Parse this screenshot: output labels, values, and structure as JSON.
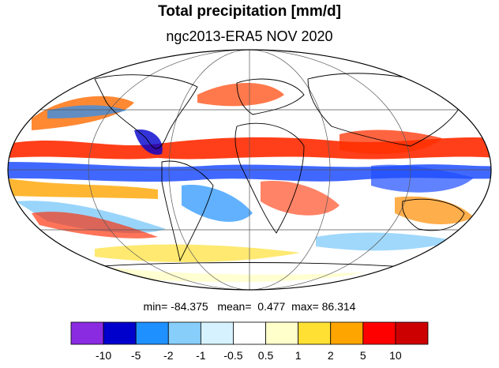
{
  "title": "Total precipitation [mm/d]",
  "subtitle": "ngc2013-ERA5 NOV 2020",
  "stats": {
    "min_label": "min=",
    "min": "-84.375",
    "mean_label": "mean=",
    "mean": "0.477",
    "max_label": "max=",
    "max": "86.314"
  },
  "colorbar": {
    "colors": [
      "#8a2be2",
      "#0000cd",
      "#1e90ff",
      "#87cefa",
      "#d6f2ff",
      "#ffffff",
      "#ffffcc",
      "#ffe033",
      "#ffa500",
      "#ff0000",
      "#cc0000"
    ],
    "labels": [
      "-10",
      "-5",
      "-2",
      "-1",
      "-0.5",
      "0.5",
      "1",
      "2",
      "5",
      "10"
    ]
  },
  "map": {
    "projection": "Mollweide",
    "land_color": "#ffffff",
    "outline_color": "#000000",
    "grid_color": "#555555"
  }
}
